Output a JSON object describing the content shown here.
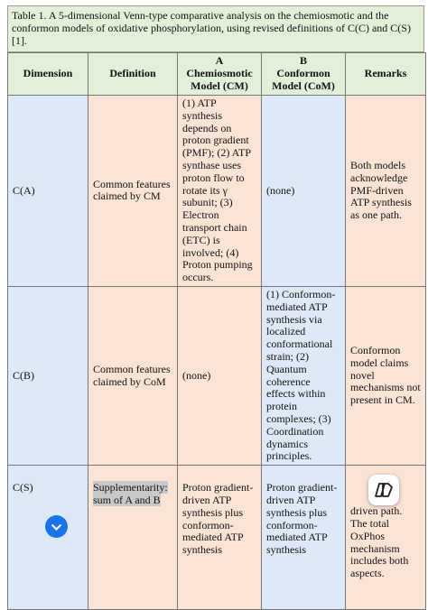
{
  "caption": "Table 1. A 5-dimensional Venn-type comparative analysis on the chemiosmotic and the conformon models of oxidative phosphorylation, using revised definitions of C(C) and C(S) [1].",
  "table": {
    "header": [
      "Dimension",
      "Definition",
      {
        "letter": "A",
        "name": "Chemiosmotic Model (CM)"
      },
      {
        "letter": "B",
        "name": "Conformon Model (CoM)"
      },
      "Remarks"
    ],
    "rows": [
      [
        "C(A)",
        "Common features claimed by CM",
        "(1) ATP synthesis depends on proton gradient (PMF); (2) ATP synthase uses proton flow to rotate its γ subunit; (3) Electron transport chain (ETC) is involved; (4) Proton pumping occurs.",
        "(none)",
        "Both models acknowledge PMF-driven ATP synthesis as one path."
      ],
      [
        "C(B)",
        "Common features claimed by CoM",
        "(none)",
        "(1) Conformon-mediated ATP synthesis via localized conformational strain; (2) Quantum coherence effects within protein complexes; (3) Coordination dynamics principles.",
        "Conformon model claims novel mechanisms not present in CM."
      ],
      [
        "C(S)",
        "Supplementarity: sum of A and B",
        "Proton gradient-driven ATP synthesis plus conformon-mediated ATP synthesis",
        "Proton gradient-driven ATP synthesis plus conformon-mediated ATP synthesis",
        "driven path. The total OxPhos mechanism includes both aspects."
      ]
    ]
  }
}
